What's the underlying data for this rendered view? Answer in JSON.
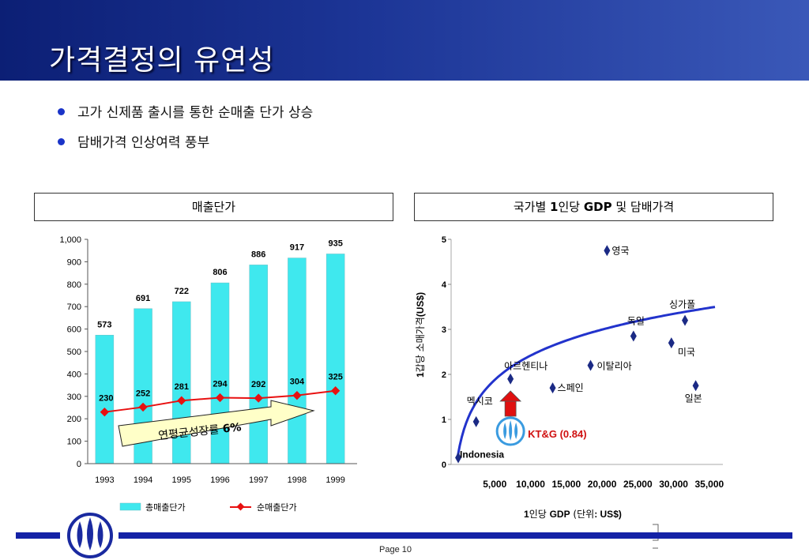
{
  "page": {
    "title": "가격결정의 유연성",
    "bullets": [
      "고가 신제품 출시를 통한 순매출 단가 상승",
      "담배가격 인상여력 풍부"
    ],
    "page_number": "Page 10"
  },
  "colors": {
    "header": "#1c3596",
    "bar": "#3fe8ee",
    "line": "#e81010",
    "scatter": "#1b2a85",
    "curve": "#2233cc",
    "arrow": "#e01010",
    "kt_text": "#d01010"
  },
  "chart_data": [
    {
      "type": "bar",
      "caption": "매출단가",
      "categories": [
        "1993",
        "1994",
        "1995",
        "1996",
        "1997",
        "1998",
        "1999"
      ],
      "series": [
        {
          "name": "총매출단가",
          "type": "bar",
          "values": [
            573,
            691,
            722,
            806,
            886,
            917,
            935
          ]
        },
        {
          "name": "순매출단가",
          "type": "line",
          "values": [
            230,
            252,
            281,
            294,
            292,
            304,
            325
          ]
        }
      ],
      "ylim": [
        0,
        1000
      ],
      "yticks": [
        "0",
        "100",
        "200",
        "300",
        "400",
        "500",
        "600",
        "700",
        "800",
        "900",
        "1,000"
      ],
      "annotation": {
        "text": "연평균성장률 ",
        "value": "6%"
      },
      "legend": "bottom"
    },
    {
      "type": "scatter",
      "caption": {
        "a": "국가별 ",
        "b": "1",
        "c": "인당 ",
        "d": "GDP",
        "e": " 및 담배가격"
      },
      "points": [
        {
          "label": "Indonesia",
          "x": 1000,
          "y": 0.15
        },
        {
          "label": "멕시코",
          "x": 3500,
          "y": 0.95
        },
        {
          "label": "아르헨티나",
          "x": 8300,
          "y": 1.9
        },
        {
          "label": "스페인",
          "x": 14200,
          "y": 1.7
        },
        {
          "label": "이탈리아",
          "x": 19500,
          "y": 2.2
        },
        {
          "label": "영국",
          "x": 21800,
          "y": 4.75
        },
        {
          "label": "독일",
          "x": 25500,
          "y": 2.85
        },
        {
          "label": "미국",
          "x": 30800,
          "y": 2.7
        },
        {
          "label": "싱가폴",
          "x": 32700,
          "y": 3.2
        },
        {
          "label": "일본",
          "x": 34200,
          "y": 1.75
        }
      ],
      "kt": {
        "label": "KT&G (0.84)",
        "x": 8300,
        "y": 0.84
      },
      "xticks": [
        "5,000",
        "10,000",
        "15,000",
        "20,000",
        "25,000",
        "30,000",
        "35,000"
      ],
      "xtick_values": [
        5000,
        10000,
        15000,
        20000,
        25000,
        30000,
        35000
      ],
      "yticks": [
        "0",
        "1",
        "2",
        "3",
        "4",
        "5"
      ],
      "xlim": [
        0,
        38000
      ],
      "ylim": [
        0,
        5
      ],
      "xlabel": {
        "a": "1",
        "b": "인당 ",
        "c": "GDP",
        "d": " (단위",
        "e": ": US$)"
      },
      "ylabel": {
        "a": "1",
        "b": "갑당 소매가격",
        "c": "(US$)"
      }
    }
  ]
}
